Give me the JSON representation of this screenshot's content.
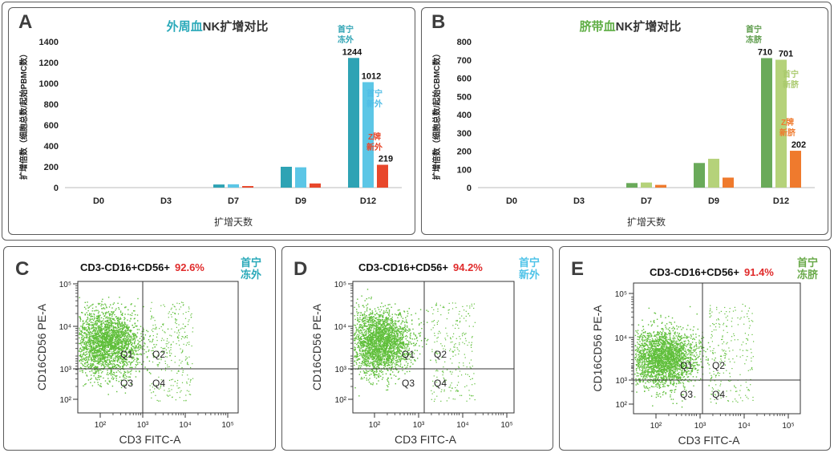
{
  "panels": {
    "A": {
      "label": "A",
      "title_part1": "外周血",
      "title_part2": "NK扩增对比",
      "ylabel": "扩增倍数（细胞总数/起始PBMC数）",
      "xlabel": "扩增天数"
    },
    "B": {
      "label": "B",
      "title_part1": "脐带血",
      "title_part2": "NK扩增对比",
      "ylabel": "扩增倍数（细胞总数/起始CBMC数）",
      "xlabel": "扩增天数"
    },
    "C": {
      "label": "C",
      "gate": "CD3-CD16+CD56+",
      "percent": "92.6%",
      "tag_line1": "首宁",
      "tag_line2": "冻外",
      "tag_color": "#2aa9b9"
    },
    "D": {
      "label": "D",
      "gate": "CD3-CD16+CD56+",
      "percent": "94.2%",
      "tag_line1": "首宁",
      "tag_line2": "新外",
      "tag_color": "#4fc3e8"
    },
    "E": {
      "label": "E",
      "gate": "CD3-CD16+CD56+",
      "percent": "91.4%",
      "tag_line1": "首宁",
      "tag_line2": "冻脐",
      "tag_color": "#6aaa4a"
    }
  },
  "flow_axes": {
    "xlabel": "CD3 FITC-A",
    "ylabel": "CD16CD56 PE-A",
    "quadrants": [
      "Q1",
      "Q2",
      "Q3",
      "Q4"
    ],
    "x_ticks": [
      "10²",
      "10³",
      "10⁴",
      "10⁵"
    ],
    "y_ticks": [
      "10²",
      "10³",
      "10⁴",
      "10⁵"
    ]
  },
  "chart_data": [
    {
      "type": "bar",
      "title": "外周血NK扩增对比",
      "xlabel": "扩增天数",
      "ylabel": "扩增倍数（细胞总数/起始PBMC数）",
      "ylim": [
        0,
        1400
      ],
      "yticks": [
        0,
        200,
        400,
        600,
        800,
        1000,
        1200,
        1400
      ],
      "categories": [
        "D0",
        "D3",
        "D7",
        "D9",
        "D12"
      ],
      "series": [
        {
          "name": "首宁冻外",
          "color": "#2ea3b4",
          "values": [
            0,
            0,
            30,
            200,
            1244
          ]
        },
        {
          "name": "首宁新外",
          "color": "#5cc6e6",
          "values": [
            0,
            0,
            32,
            195,
            1012
          ]
        },
        {
          "name": "Z牌新外",
          "color": "#e8472b",
          "values": [
            0,
            0,
            15,
            40,
            219
          ]
        }
      ],
      "data_labels": [
        "1244",
        "1012",
        "219"
      ],
      "legend_labels": [
        {
          "line1": "首宁",
          "line2": "冻外",
          "color": "#2ea3b4"
        },
        {
          "line1": "首宁",
          "line2": "新外",
          "color": "#4fbde6"
        },
        {
          "line1": "Z牌",
          "line2": "新外",
          "color": "#e8472b"
        }
      ]
    },
    {
      "type": "bar",
      "title": "脐带血NK扩增对比",
      "xlabel": "扩增天数",
      "ylabel": "扩增倍数（细胞总数/起始CBMC数）",
      "ylim": [
        0,
        800
      ],
      "yticks": [
        0,
        100,
        200,
        300,
        400,
        500,
        600,
        700,
        800
      ],
      "categories": [
        "D0",
        "D3",
        "D7",
        "D9",
        "D12"
      ],
      "series": [
        {
          "name": "首宁冻脐",
          "color": "#6aaa5a",
          "values": [
            0,
            0,
            25,
            135,
            710
          ]
        },
        {
          "name": "首宁新脐",
          "color": "#b5d27a",
          "values": [
            0,
            0,
            28,
            158,
            701
          ]
        },
        {
          "name": "Z牌新脐",
          "color": "#ef7a2d",
          "values": [
            0,
            0,
            15,
            55,
            202
          ]
        }
      ],
      "data_labels": [
        "710",
        "701",
        "202"
      ],
      "legend_labels": [
        {
          "line1": "首宁",
          "line2": "冻脐",
          "color": "#5a9a48"
        },
        {
          "line1": "首宁",
          "line2": "新脐",
          "color": "#a9c96b"
        },
        {
          "line1": "Z牌",
          "line2": "新脐",
          "color": "#ef7a2d"
        }
      ]
    }
  ]
}
